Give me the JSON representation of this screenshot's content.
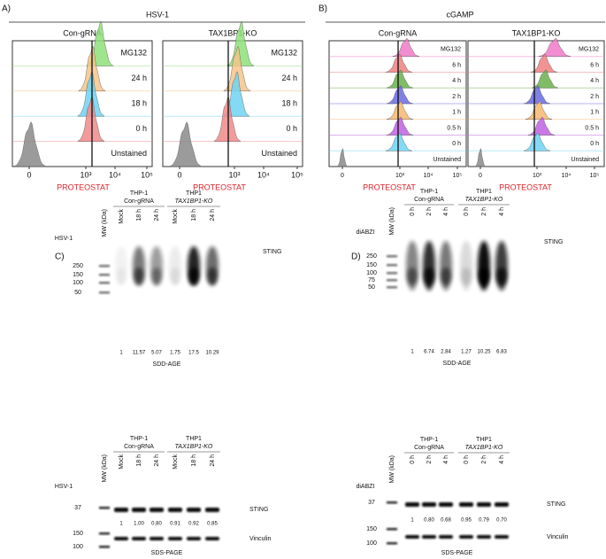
{
  "flow_A": {
    "label": "A)",
    "header": "HSV-1",
    "columns": [
      "Con-gRNA",
      "TAX1BP1-KO"
    ],
    "rows": [
      "MG132",
      "24 h",
      "18 h",
      "0 h",
      "Unstained"
    ],
    "ticks": [
      "0",
      "10³",
      "10⁴",
      "10⁵"
    ],
    "x_axis_label": "PROTEOSTAT"
  },
  "flow_B": {
    "label": "B)",
    "header": "cGAMP",
    "columns": [
      "Con-gRNA",
      "TAX1BP1-KO"
    ],
    "rows": [
      "MG132",
      "6 h",
      "4 h",
      "2 h",
      "1 h",
      "0.5 h",
      "0 h",
      "Unstained"
    ],
    "ticks": [
      "0",
      "10³",
      "10⁴",
      "10⁵"
    ],
    "x_axis_label": "PROTEOSTAT"
  },
  "blot_C": {
    "label": "C)",
    "treatment": "HSV-1",
    "groups": [
      [
        "THP-1",
        "Con-gRNA"
      ],
      [
        "THP1",
        "TAX1BP1-KO"
      ]
    ],
    "lanes": [
      "MW (kDa)",
      "Mock",
      "18 h",
      "24 h",
      "Mock",
      "18 h",
      "24 h"
    ],
    "upper": {
      "markers": [
        250,
        150,
        100,
        50
      ],
      "band": "STING",
      "quant": [
        "1",
        "11.57",
        "5.07",
        "1.75",
        "17.5",
        "10.29"
      ],
      "method": "SDD-AGE"
    },
    "lower": {
      "markers": [
        37,
        150,
        100
      ],
      "bands": [
        "STING",
        "Vinculin"
      ],
      "quant": [
        "1",
        "1.00",
        "0.80",
        "0.91",
        "0.92",
        "0.85"
      ],
      "method": "SDS-PAGE"
    }
  },
  "blot_D": {
    "label": "D)",
    "treatment": "diABZI",
    "groups": [
      [
        "THP-1",
        "Con-gRNA"
      ],
      [
        "THP1",
        "TAX1BP1-KO"
      ]
    ],
    "lanes": [
      "MW (kDa)",
      "0 h",
      "2 h",
      "4 h",
      "0 h",
      "2 h",
      "4 h"
    ],
    "upper": {
      "markers": [
        250,
        150,
        100,
        75,
        50
      ],
      "band": "STING",
      "quant": [
        "1",
        "6.74",
        "2.84",
        "1.27",
        "10.25",
        "6.83"
      ],
      "method": "SDD-AGE"
    },
    "lower": {
      "markers": [
        37,
        150,
        100
      ],
      "bands": [
        "STING",
        "Vinculin"
      ],
      "quant": [
        "1",
        "0.80",
        "0.68",
        "0.95",
        "0.79",
        "0.70"
      ],
      "method": "SDS-PAGE"
    }
  }
}
